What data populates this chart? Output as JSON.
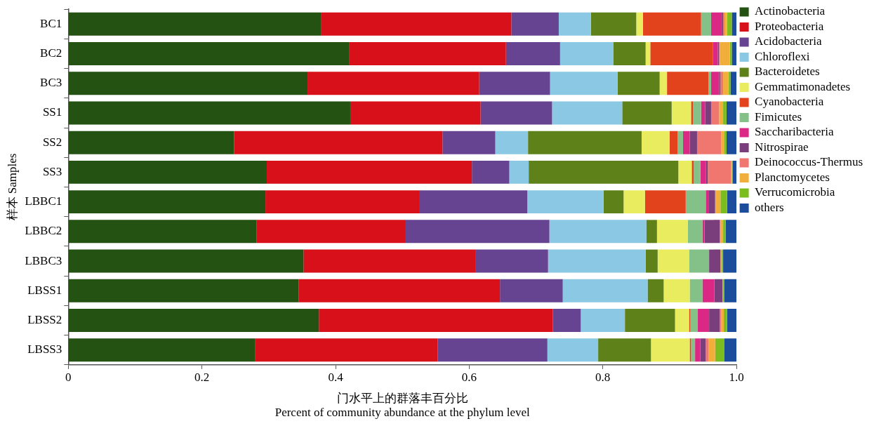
{
  "chart_data": {
    "type": "bar",
    "orientation": "horizontal",
    "stacked": true,
    "ylabel": "样本 Samples",
    "xlabel": "门水平上的群落丰百分比\nPercent of community abundance at the phylum level",
    "categories": [
      "BC1",
      "BC2",
      "BC3",
      "SS1",
      "SS2",
      "SS3",
      "LBBC1",
      "LBBC2",
      "LBBC3",
      "LBSS1",
      "LBSS2",
      "LBSS3"
    ],
    "xlim": [
      0,
      1
    ],
    "xticks": [
      0,
      0.2,
      0.4,
      0.6,
      0.8,
      {
        "value": 1,
        "label": "1.0"
      }
    ],
    "grid": false,
    "legend": "top right",
    "series": [
      {
        "name": "Actinobacteria",
        "color": "#245213",
        "values": [
          0.378,
          0.42,
          0.358,
          0.422,
          0.248,
          0.297,
          0.295,
          0.282,
          0.352,
          0.345,
          0.375,
          0.28
        ]
      },
      {
        "name": "Proteobacteria",
        "color": "#d7101a",
        "values": [
          0.285,
          0.235,
          0.257,
          0.195,
          0.312,
          0.307,
          0.231,
          0.223,
          0.258,
          0.301,
          0.35,
          0.273
        ]
      },
      {
        "name": "Acidobacteria",
        "color": "#664491",
        "values": [
          0.071,
          0.081,
          0.106,
          0.107,
          0.079,
          0.056,
          0.161,
          0.215,
          0.108,
          0.094,
          0.042,
          0.164
        ]
      },
      {
        "name": "Chloroflexi",
        "color": "#8bc8e3",
        "values": [
          0.048,
          0.08,
          0.101,
          0.105,
          0.049,
          0.029,
          0.114,
          0.145,
          0.146,
          0.127,
          0.066,
          0.076
        ]
      },
      {
        "name": "Bacteroidetes",
        "color": "#5e8119",
        "values": [
          0.068,
          0.048,
          0.063,
          0.074,
          0.17,
          0.224,
          0.03,
          0.016,
          0.018,
          0.024,
          0.075,
          0.079
        ]
      },
      {
        "name": "Gemmatimonadetes",
        "color": "#e9ec5e",
        "values": [
          0.01,
          0.007,
          0.011,
          0.029,
          0.042,
          0.02,
          0.032,
          0.046,
          0.047,
          0.039,
          0.021,
          0.058
        ]
      },
      {
        "name": "Cyanobacteria",
        "color": "#e2431c",
        "values": [
          0.087,
          0.094,
          0.062,
          0.003,
          0.012,
          0.003,
          0.061,
          0,
          0,
          0,
          0.002,
          0.002
        ]
      },
      {
        "name": "Fimicutes",
        "color": "#83c189",
        "values": [
          0.015,
          0,
          0.004,
          0.012,
          0.008,
          0.01,
          0.03,
          0.022,
          0.03,
          0.019,
          0.011,
          0.006
        ]
      },
      {
        "name": "Saccharibacteria",
        "color": "#db2885",
        "values": [
          0.016,
          0.007,
          0.012,
          0.006,
          0.01,
          0.008,
          0.004,
          0.003,
          0,
          0.018,
          0.017,
          0.008
        ]
      },
      {
        "name": "Nitrospirae",
        "color": "#7a3e7c",
        "values": [
          0.002,
          0.002,
          0.002,
          0.009,
          0.011,
          0.003,
          0.01,
          0.023,
          0.017,
          0.012,
          0.016,
          0.008
        ]
      },
      {
        "name": "Deinococcus-Thermus",
        "color": "#ef7770",
        "values": [
          0.002,
          0.001,
          0.004,
          0.012,
          0.036,
          0.035,
          0,
          0.001,
          0,
          0,
          0.002,
          0.004
        ]
      },
      {
        "name": "Planctomycetes",
        "color": "#f2ae3a",
        "values": [
          0.004,
          0.015,
          0.008,
          0.006,
          0.005,
          0.001,
          0.008,
          0.004,
          0.002,
          0.001,
          0.004,
          0.01
        ]
      },
      {
        "name": "Verrucomicrobia",
        "color": "#7bbd1f",
        "values": [
          0.007,
          0.003,
          0.003,
          0.005,
          0.003,
          0.001,
          0.01,
          0.004,
          0.002,
          0.002,
          0.005,
          0.014
        ]
      },
      {
        "name": "others",
        "color": "#1c4c9c",
        "values": [
          0.007,
          0.007,
          0.009,
          0.015,
          0.015,
          0.006,
          0.014,
          0.016,
          0.02,
          0.018,
          0.014,
          0.018
        ]
      }
    ]
  }
}
